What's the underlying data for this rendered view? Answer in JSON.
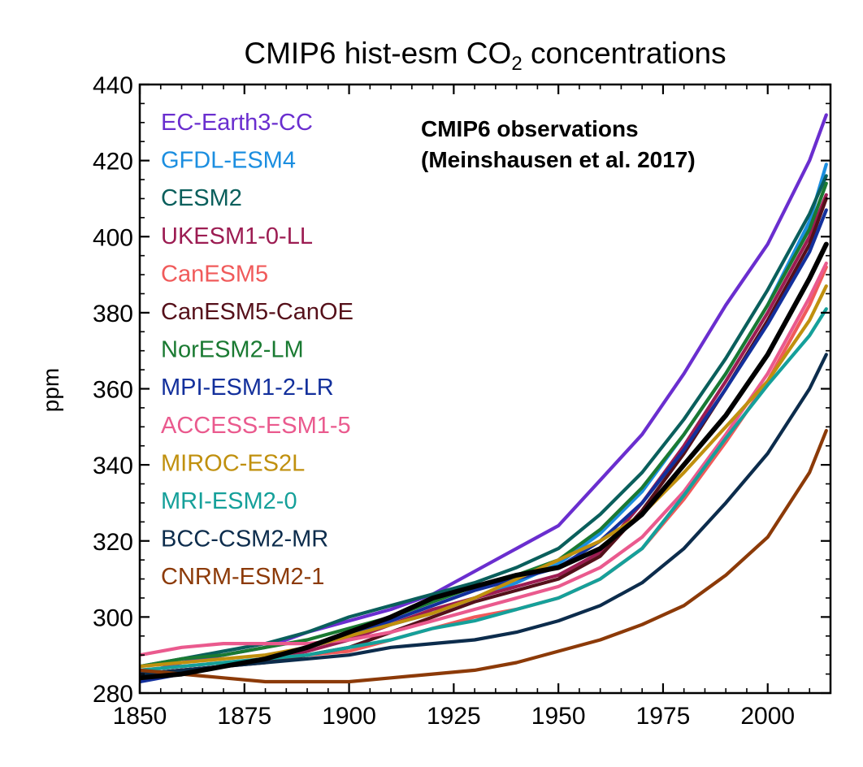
{
  "chart_data": {
    "type": "line",
    "title": "CMIP6 hist-esm CO",
    "title_sub": "2",
    "title_suffix": " concentrations",
    "xlabel": "",
    "ylabel": "ppm",
    "xlim": [
      1850,
      2015
    ],
    "ylim": [
      280,
      440
    ],
    "xticks": [
      1850,
      1875,
      1900,
      1925,
      1950,
      1975,
      2000
    ],
    "yticks": [
      280,
      300,
      320,
      340,
      360,
      380,
      400,
      420,
      440
    ],
    "grid": false,
    "legend_position": "top-left",
    "annotation": [
      "CMIP6 observations",
      "(Meinshausen et al. 2017)"
    ],
    "x": [
      1850,
      1860,
      1870,
      1880,
      1890,
      1900,
      1910,
      1920,
      1930,
      1940,
      1950,
      1960,
      1970,
      1980,
      1990,
      2000,
      2010,
      2014
    ],
    "series": [
      {
        "name": "EC-Earth3-CC",
        "color": "#6a2ecf",
        "values": [
          285,
          288,
          290,
          292,
          296,
          299,
          302,
          306,
          312,
          318,
          324,
          336,
          348,
          364,
          382,
          398,
          420,
          432
        ]
      },
      {
        "name": "GFDL-ESM4",
        "color": "#1b8ee0",
        "values": [
          284,
          285,
          287,
          289,
          292,
          295,
          298,
          301,
          305,
          309,
          314,
          322,
          333,
          348,
          364,
          382,
          404,
          419
        ]
      },
      {
        "name": "CESM2",
        "color": "#0a5f5c",
        "values": [
          287,
          289,
          291,
          293,
          296,
          300,
          303,
          306,
          309,
          313,
          318,
          327,
          338,
          352,
          368,
          386,
          406,
          416
        ]
      },
      {
        "name": "UKESM1-0-LL",
        "color": "#9c1c52",
        "values": [
          285,
          286,
          287,
          289,
          291,
          294,
          298,
          302,
          305,
          308,
          311,
          317,
          330,
          345,
          362,
          380,
          400,
          411
        ]
      },
      {
        "name": "CanESM5",
        "color": "#f05a5a",
        "values": [
          286,
          287,
          288,
          289,
          290,
          291,
          294,
          297,
          300,
          302,
          305,
          310,
          318,
          331,
          346,
          362,
          382,
          392
        ]
      },
      {
        "name": "CanESM5-CanOE",
        "color": "#55101a",
        "values": [
          285,
          286,
          287,
          288,
          290,
          292,
          296,
          300,
          304,
          307,
          310,
          316,
          328,
          343,
          360,
          378,
          398,
          410
        ]
      },
      {
        "name": "NorESM2-LM",
        "color": "#1a7a32",
        "values": [
          287,
          289,
          290,
          292,
          294,
          297,
          300,
          304,
          308,
          311,
          315,
          323,
          334,
          348,
          364,
          382,
          402,
          414
        ]
      },
      {
        "name": "MPI-ESM1-2-LR",
        "color": "#13309c",
        "values": [
          283,
          285,
          287,
          289,
          292,
          295,
          299,
          303,
          307,
          310,
          313,
          320,
          330,
          344,
          360,
          377,
          396,
          407
        ]
      },
      {
        "name": "ACCESS-ESM1-5",
        "color": "#ea5a8e",
        "values": [
          290,
          292,
          293,
          293,
          293,
          294,
          296,
          299,
          302,
          305,
          308,
          313,
          321,
          333,
          348,
          364,
          384,
          393
        ]
      },
      {
        "name": "MIROC-ES2L",
        "color": "#c0900e",
        "values": [
          287,
          288,
          289,
          290,
          292,
          295,
          298,
          301,
          305,
          310,
          315,
          320,
          327,
          338,
          350,
          362,
          378,
          387
        ]
      },
      {
        "name": "MRI-ESM2-0",
        "color": "#15a09a",
        "values": [
          286,
          287,
          288,
          289,
          290,
          292,
          294,
          297,
          299,
          302,
          305,
          310,
          318,
          332,
          347,
          361,
          374,
          381
        ]
      },
      {
        "name": "BCC-CSM2-MR",
        "color": "#0c2c4c",
        "values": [
          285,
          286,
          287,
          288,
          289,
          290,
          292,
          293,
          294,
          296,
          299,
          303,
          309,
          318,
          330,
          343,
          360,
          369
        ]
      },
      {
        "name": "CNRM-ESM2-1",
        "color": "#8c3a08",
        "values": [
          286,
          285,
          284,
          283,
          283,
          283,
          284,
          285,
          286,
          288,
          291,
          294,
          298,
          303,
          311,
          321,
          338,
          349
        ]
      },
      {
        "name": "",
        "color": "#000000",
        "values": [
          284,
          285,
          287,
          289,
          292,
          296,
          300,
          305,
          308,
          311,
          313,
          318,
          327,
          340,
          353,
          369,
          389,
          398
        ]
      }
    ]
  }
}
